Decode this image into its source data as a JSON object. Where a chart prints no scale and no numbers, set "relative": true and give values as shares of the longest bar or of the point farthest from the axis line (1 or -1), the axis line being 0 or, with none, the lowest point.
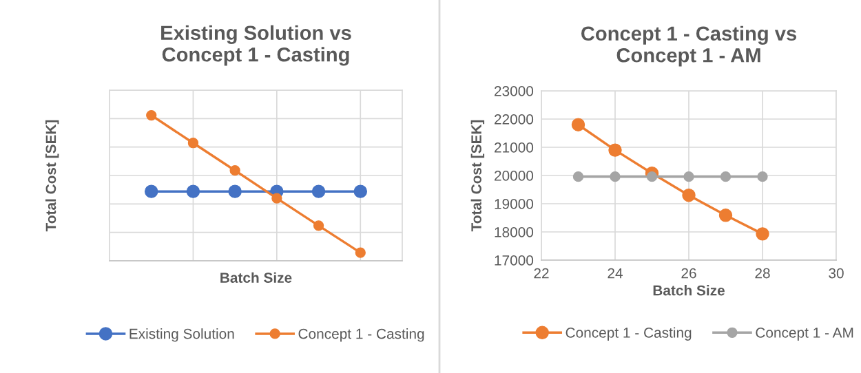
{
  "chart_data": [
    {
      "type": "line",
      "title": "Existing Solution vs\nConcept 1 - Casting",
      "xlabel": "Batch Size",
      "ylabel": "Total Cost [SEK]",
      "relative": true,
      "categories": [
        null,
        null,
        null,
        null,
        null,
        null
      ],
      "grid": true,
      "legend": "bottom",
      "marker": "circle",
      "line_style": "solid",
      "series": [
        {
          "name": "Existing Solution",
          "color": "#4472c4",
          "values": [
            0.477,
            0.477,
            0.477,
            0.477,
            0.477,
            0.477
          ]
        },
        {
          "name": "Concept 1 - Casting",
          "color": "#ed7d31",
          "values": [
            1,
            0.81,
            0.621,
            0.43,
            0.242,
            0.056
          ]
        }
      ]
    },
    {
      "type": "line",
      "title": "Concept 1 - Casting vs\nConcept 1 - AM",
      "xlabel": "Batch Size",
      "ylabel": "Total Cost [SEK]",
      "x": [
        23,
        24,
        25,
        26,
        27,
        28
      ],
      "xlim": [
        22,
        30
      ],
      "xticks": [
        22,
        24,
        26,
        28,
        30
      ],
      "ylim": [
        17000,
        23000
      ],
      "yticks": [
        17000,
        18000,
        19000,
        20000,
        21000,
        22000,
        23000
      ],
      "grid": true,
      "legend": "bottom",
      "marker": "circle",
      "line_style": "solid",
      "series": [
        {
          "name": "Concept 1 - Casting",
          "color": "#ed7d31",
          "values": [
            21800,
            20900,
            20080,
            19300,
            18590,
            17930
          ]
        },
        {
          "name": "Concept 1 - AM",
          "color": "#a5a5a5",
          "values": [
            19960,
            19960,
            19960,
            19960,
            19960,
            19960
          ]
        }
      ]
    }
  ]
}
